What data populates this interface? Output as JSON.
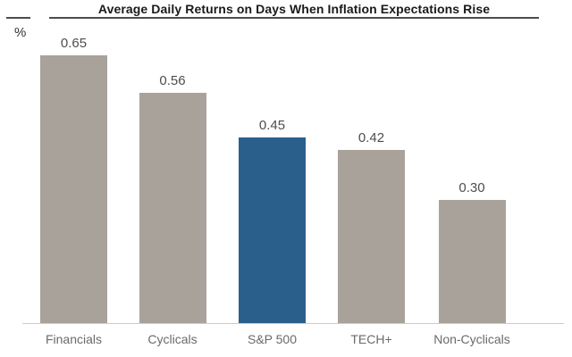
{
  "chart_data": {
    "type": "bar",
    "title": "Average Daily Returns on Days When Inflation Expectations Rise",
    "ylabel": "%",
    "xlabel": "",
    "categories": [
      "Financials",
      "Cyclicals",
      "S&P 500",
      "TECH+",
      "Non-Cyclicals"
    ],
    "values": [
      0.65,
      0.56,
      0.45,
      0.42,
      0.3
    ],
    "value_labels": [
      "0.65",
      "0.56",
      "0.45",
      "0.42",
      "0.30"
    ],
    "highlighted_index": 2,
    "ylim": [
      0,
      0.7
    ],
    "grid": false,
    "legend": false,
    "orientation": "vertical"
  },
  "colors": {
    "bar": "#a9a29b",
    "highlight": "#2a5f8c",
    "baseline": "#cccccc",
    "rule": "#4d4d4d",
    "title": "#1a1a1a",
    "pct": "#333333",
    "value_label": "#4d4d4d",
    "category_label": "#6a6a6a"
  }
}
